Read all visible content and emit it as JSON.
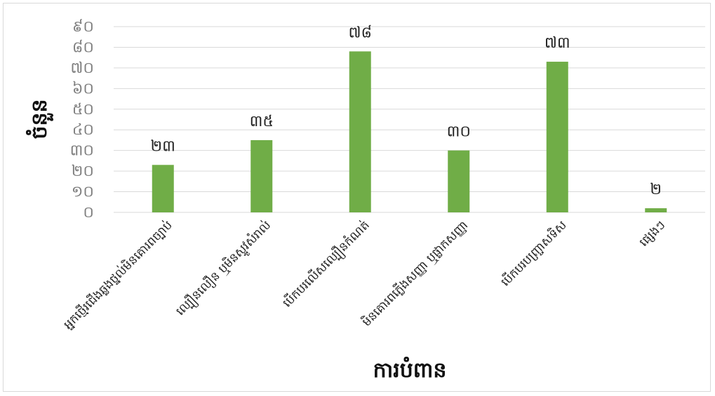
{
  "chart_data": {
    "type": "bar",
    "title": "",
    "xlabel": "ការបំពាន",
    "ylabel": "ចំនួន",
    "categories": [
      "អ្នកថ្មើរជើងឆ្លងថ្នល់មិនគោរពច្បាប់",
      "ល្បឿនលឿន ឬមិនស្ទូវសំរាល់",
      "បើកបរលើសល្បឿនកំណត់",
      "មិនគោរពភ្លើងសញ្ញា ឬផ្លាកសញ្ញា",
      "បើកបរបញ្ច្រាសទិស",
      "ផ្សេងៗ"
    ],
    "values": [
      23,
      35,
      78,
      30,
      73,
      2
    ],
    "value_labels": [
      "២៣",
      "៣៥",
      "៧៨",
      "៣០",
      "៧៣",
      "២"
    ],
    "ylim": [
      0,
      90
    ],
    "yticks": [
      0,
      10,
      20,
      30,
      40,
      50,
      60,
      70,
      80,
      90
    ],
    "ytick_labels": [
      "០",
      "១០",
      "២០",
      "៣០",
      "៤០",
      "៥០",
      "៦០",
      "៧០",
      "៨០",
      "៩០"
    ],
    "grid": true,
    "legend": "none",
    "bar_color": "#70ad47",
    "grid_color": "#d9d9d9"
  }
}
